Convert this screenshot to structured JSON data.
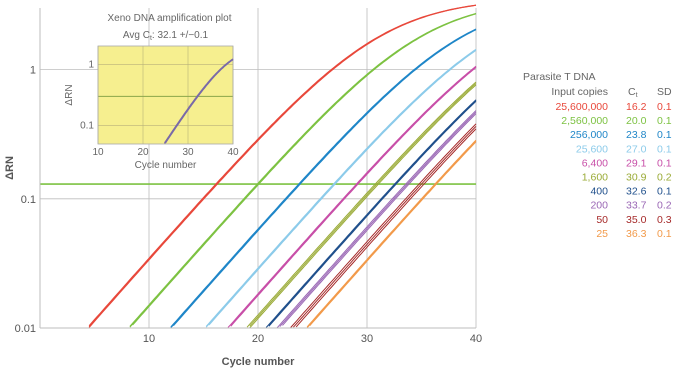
{
  "chart_data": {
    "type": "line",
    "xlabel": "Cycle number",
    "ylabel": "ΔRN",
    "xlim": [
      0,
      40
    ],
    "ylim": [
      0.01,
      3
    ],
    "yscale": "log",
    "xticks": [
      "10",
      "20",
      "30",
      "40"
    ],
    "yticks": [
      "0.01",
      "0.1",
      "1"
    ],
    "grid": true,
    "threshold": 0.13,
    "threshold_color": "#7dc242",
    "legend": {
      "placement": "right",
      "title": "Parasite T DNA",
      "col_input": "Input copies",
      "col_ct_main": "C",
      "col_ct_sub": "t",
      "col_sd": "SD",
      "rows": [
        {
          "input": "25,600,000",
          "ct": "16.2",
          "sd": "0.1",
          "color": "#e8483b"
        },
        {
          "input": "2,560,000",
          "ct": "20.0",
          "sd": "0.1",
          "color": "#7dc242"
        },
        {
          "input": "256,000",
          "ct": "23.8",
          "sd": "0.1",
          "color": "#1f86c8"
        },
        {
          "input": "25,600",
          "ct": "27.0",
          "sd": "0.1",
          "color": "#8ccbea"
        },
        {
          "input": "6,400",
          "ct": "29.1",
          "sd": "0.1",
          "color": "#c84fa8"
        },
        {
          "input": "1,600",
          "ct": "30.9",
          "sd": "0.2",
          "color": "#9aab36"
        },
        {
          "input": "400",
          "ct": "32.6",
          "sd": "0.1",
          "color": "#20508c"
        },
        {
          "input": "200",
          "ct": "33.7",
          "sd": "0.2",
          "color": "#9a67b5"
        },
        {
          "input": "50",
          "ct": "35.0",
          "sd": "0.3",
          "color": "#a62a2a"
        },
        {
          "input": "25",
          "ct": "36.3",
          "sd": "0.1",
          "color": "#f29a4a"
        }
      ]
    },
    "plateau": 3.6,
    "replicates": 3,
    "inset": {
      "title": "Xeno DNA amplification plot",
      "subtitle_prefix": "Avg C",
      "subtitle_sub": "t",
      "subtitle_suffix": ":  32.1 +/−0.1",
      "xlabel": "Cycle number",
      "ylabel": "ΔRN",
      "xlim": [
        10,
        40
      ],
      "ylim": [
        0.05,
        2
      ],
      "xticks": [
        "10",
        "20",
        "30",
        "40"
      ],
      "yticks": [
        "0.1",
        "1"
      ],
      "threshold": 0.3,
      "ct": 32.1,
      "background": "#f6ef8f",
      "line_color": "#7a6aa8"
    }
  }
}
